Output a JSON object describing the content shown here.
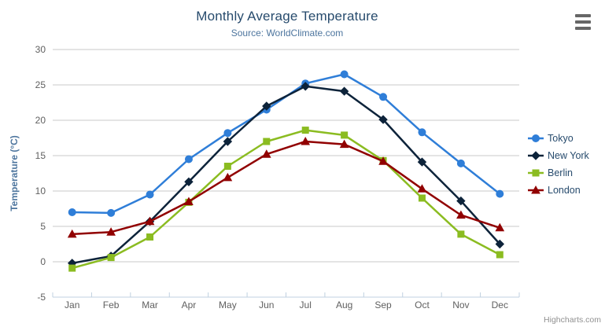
{
  "chart_data": {
    "type": "line",
    "title": "Monthly Average Temperature",
    "subtitle": "Source: WorldClimate.com",
    "categories": [
      "Jan",
      "Feb",
      "Mar",
      "Apr",
      "May",
      "Jun",
      "Jul",
      "Aug",
      "Sep",
      "Oct",
      "Nov",
      "Dec"
    ],
    "xlabel": "",
    "ylabel": "Temperature (°C)",
    "ylim": [
      -5,
      30
    ],
    "yticks": [
      -5,
      0,
      5,
      10,
      15,
      20,
      25,
      30
    ],
    "grid": true,
    "legend_position": "right-middle",
    "series": [
      {
        "name": "Tokyo",
        "color": "#2f7ed8",
        "marker": "circle",
        "values": [
          7.0,
          6.9,
          9.5,
          14.5,
          18.2,
          21.5,
          25.2,
          26.5,
          23.3,
          18.3,
          13.9,
          9.6
        ]
      },
      {
        "name": "New York",
        "color": "#0d233a",
        "marker": "diamond",
        "values": [
          -0.2,
          0.8,
          5.7,
          11.3,
          17.0,
          22.0,
          24.8,
          24.1,
          20.1,
          14.1,
          8.6,
          2.5
        ]
      },
      {
        "name": "Berlin",
        "color": "#8bbc21",
        "marker": "square",
        "values": [
          -0.9,
          0.6,
          3.5,
          8.4,
          13.5,
          17.0,
          18.6,
          17.9,
          14.3,
          9.0,
          3.9,
          1.0
        ]
      },
      {
        "name": "London",
        "color": "#910000",
        "marker": "triangle",
        "values": [
          3.9,
          4.2,
          5.7,
          8.5,
          11.9,
          15.2,
          17.0,
          16.6,
          14.2,
          10.3,
          6.6,
          4.8
        ]
      }
    ],
    "colors": {
      "title": "#274b6d",
      "subtitle": "#4d759e",
      "axis_label": "#606060",
      "axis_title": "#4d759e",
      "grid_line": "#c8c8c8",
      "axis_line": "#c0d0e0",
      "legend_text": "#274b6d",
      "background": "#ffffff"
    }
  },
  "export_menu": {
    "icon": "hamburger-icon"
  },
  "credits": {
    "label": "Highcharts.com"
  }
}
